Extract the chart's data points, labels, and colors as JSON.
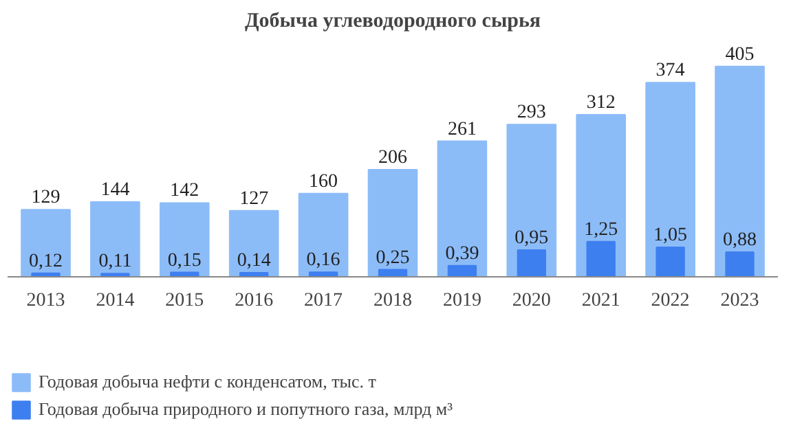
{
  "chart_data": {
    "type": "bar",
    "title": "Добыча углеводородного сырья",
    "categories": [
      "2013",
      "2014",
      "2015",
      "2016",
      "2017",
      "2018",
      "2019",
      "2020",
      "2021",
      "2022",
      "2023"
    ],
    "series": [
      {
        "name": "Годовая добыча нефти с конденсатом, тыс. т",
        "color": "#8cbcf8",
        "values": [
          129,
          144,
          142,
          127,
          160,
          206,
          261,
          293,
          312,
          374,
          405
        ],
        "value_labels": [
          "129",
          "144",
          "142",
          "127",
          "160",
          "206",
          "261",
          "293",
          "312",
          "374",
          "405"
        ]
      },
      {
        "name": "Годовая добыча природного и попутного газа, млрд м³",
        "color": "#3e7ff0",
        "axis": "y2",
        "values": [
          0.12,
          0.11,
          0.15,
          0.14,
          0.16,
          0.25,
          0.39,
          0.95,
          1.25,
          1.05,
          0.88
        ],
        "value_labels": [
          "0,12",
          "0,11",
          "0,15",
          "0,14",
          "0,16",
          "0,25",
          "0,39",
          "0,95",
          "1,25",
          "1,05",
          "0,88"
        ]
      }
    ],
    "tick_labels": "x",
    "legend": "bottom",
    "grid": false
  }
}
